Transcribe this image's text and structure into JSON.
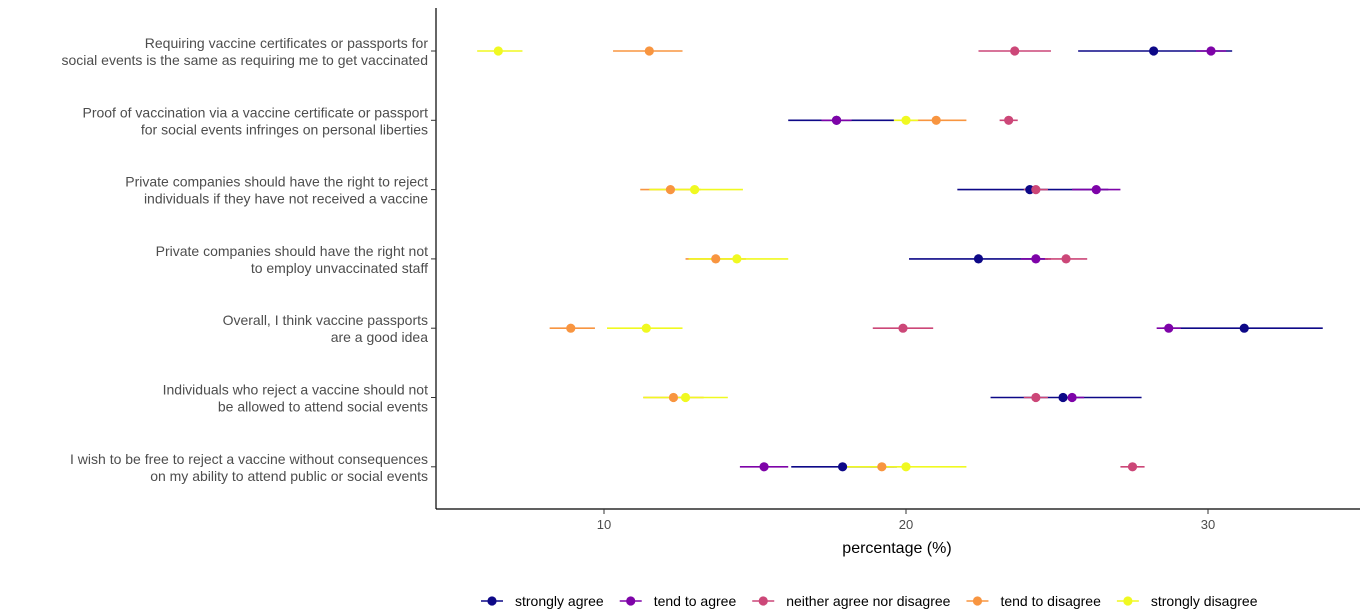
{
  "chart_data": {
    "type": "scatter",
    "xlabel": "percentage (%)",
    "x_ticks": [
      10,
      20,
      30
    ],
    "xlim": [
      4.5,
      35
    ],
    "grid": false,
    "legend_position": "bottom",
    "categories": [
      [
        "Requiring vaccine certificates or passports for",
        "social events is the same as requiring me to get vaccinated"
      ],
      [
        "Proof of vaccination via a vaccine certificate or passport",
        "for social events infringes on personal liberties"
      ],
      [
        "Private companies should have the right to reject",
        "individuals if they have not received a vaccine"
      ],
      [
        "Private companies should have the right not",
        "to employ unvaccinated staff"
      ],
      [
        "Overall, I think vaccine passports",
        "are a good idea"
      ],
      [
        "Individuals who reject a vaccine should not",
        "be allowed to attend social events"
      ],
      [
        "I wish to be free to reject a vaccine without consequences",
        "on my ability to attend public or social events"
      ]
    ],
    "series": [
      {
        "name": "strongly agree",
        "color": "#0d0887",
        "points": [
          {
            "value": 28.2,
            "low": 25.7,
            "high": 30.8
          },
          {
            "value": 17.7,
            "low": 16.1,
            "high": 19.6
          },
          {
            "value": 24.1,
            "low": 21.7,
            "high": 26.7
          },
          {
            "value": 22.4,
            "low": 20.1,
            "high": 24.7
          },
          {
            "value": 31.2,
            "low": 28.5,
            "high": 33.8
          },
          {
            "value": 25.2,
            "low": 22.8,
            "high": 27.8
          },
          {
            "value": 17.9,
            "low": 16.2,
            "high": 19.7
          }
        ]
      },
      {
        "name": "tend to agree",
        "color": "#7e03a8",
        "points": [
          {
            "value": 30.1,
            "low": 29.6,
            "high": 30.6
          },
          {
            "value": 17.7,
            "low": 17.2,
            "high": 18.2
          },
          {
            "value": 26.3,
            "low": 25.5,
            "high": 27.1
          },
          {
            "value": 24.3,
            "low": 23.8,
            "high": 24.8
          },
          {
            "value": 28.7,
            "low": 28.3,
            "high": 29.1
          },
          {
            "value": 25.5,
            "low": 25.1,
            "high": 25.9
          },
          {
            "value": 15.3,
            "low": 14.5,
            "high": 16.1
          }
        ]
      },
      {
        "name": "neither agree nor disagree",
        "color": "#cc4778",
        "points": [
          {
            "value": 23.6,
            "low": 22.4,
            "high": 24.8
          },
          {
            "value": 23.4,
            "low": 23.1,
            "high": 23.7
          },
          {
            "value": 24.3,
            "low": 23.9,
            "high": 24.7
          },
          {
            "value": 25.3,
            "low": 24.6,
            "high": 26.0
          },
          {
            "value": 19.9,
            "low": 18.9,
            "high": 20.9
          },
          {
            "value": 24.3,
            "low": 23.9,
            "high": 24.7
          },
          {
            "value": 27.5,
            "low": 27.1,
            "high": 27.9
          }
        ]
      },
      {
        "name": "tend to disagree",
        "color": "#f89540",
        "points": [
          {
            "value": 11.5,
            "low": 10.3,
            "high": 12.6
          },
          {
            "value": 21.0,
            "low": 20.0,
            "high": 22.0
          },
          {
            "value": 12.2,
            "low": 11.2,
            "high": 13.2
          },
          {
            "value": 13.7,
            "low": 12.7,
            "high": 14.7
          },
          {
            "value": 8.9,
            "low": 8.2,
            "high": 9.7
          },
          {
            "value": 12.3,
            "low": 11.3,
            "high": 13.3
          },
          {
            "value": 19.2,
            "low": 18.8,
            "high": 19.6
          }
        ]
      },
      {
        "name": "strongly disagree",
        "color": "#f0f921",
        "points": [
          {
            "value": 6.5,
            "low": 5.8,
            "high": 7.3
          },
          {
            "value": 20.0,
            "low": 19.6,
            "high": 20.4
          },
          {
            "value": 13.0,
            "low": 11.5,
            "high": 14.6
          },
          {
            "value": 14.4,
            "low": 12.8,
            "high": 16.1
          },
          {
            "value": 11.4,
            "low": 10.1,
            "high": 12.6
          },
          {
            "value": 12.7,
            "low": 11.3,
            "high": 14.1
          },
          {
            "value": 20.0,
            "low": 17.9,
            "high": 22.0
          }
        ]
      }
    ]
  }
}
